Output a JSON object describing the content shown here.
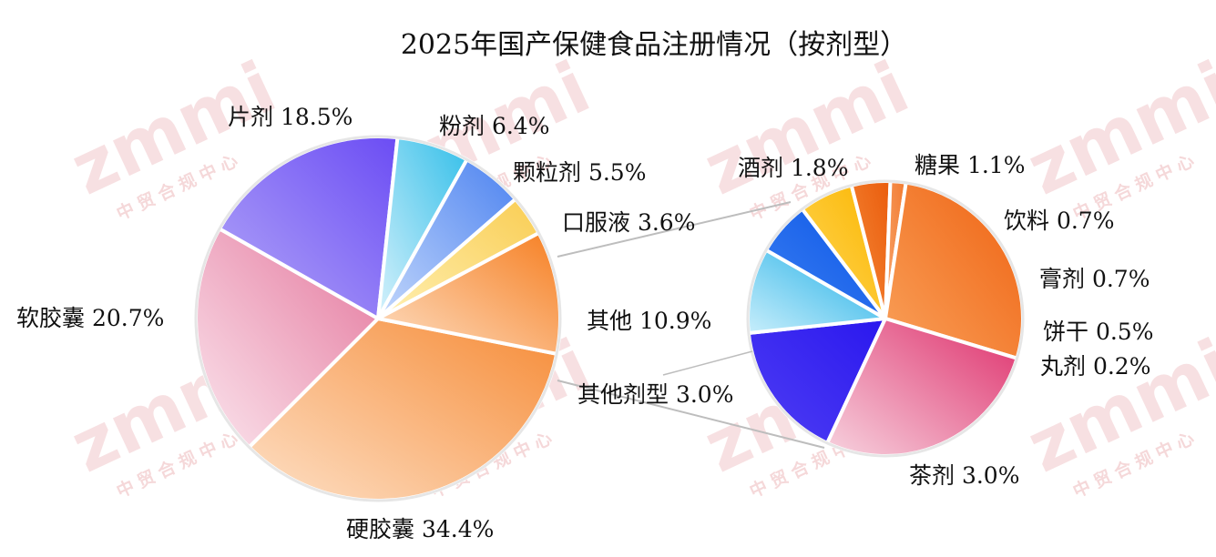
{
  "chart_data": [
    {
      "type": "pie",
      "title": "2025年国产保健食品注册情况（按剂型）",
      "slices": [
        {
          "name": "硬胶囊",
          "value": 34.4,
          "label": "硬胶囊 34.4%",
          "colors": [
            "#fde0c6",
            "#f68b36"
          ]
        },
        {
          "name": "软胶囊",
          "value": 20.7,
          "label": "软胶囊 20.7%",
          "colors": [
            "#fbe6ee",
            "#e4769c"
          ]
        },
        {
          "name": "片剂",
          "value": 18.5,
          "label": "片剂 18.5%",
          "colors": [
            "#b3a8f8",
            "#6b4cf4"
          ]
        },
        {
          "name": "粉剂",
          "value": 6.4,
          "label": "粉剂 6.4%",
          "colors": [
            "#d6f1fb",
            "#34bfe9"
          ]
        },
        {
          "name": "颗粒剂",
          "value": 5.5,
          "label": "颗粒剂 5.5%",
          "colors": [
            "#c3d7fb",
            "#4d83f0"
          ]
        },
        {
          "name": "口服液",
          "value": 3.6,
          "label": "口服液 3.6%",
          "colors": [
            "#fff0b3",
            "#f9cd53"
          ]
        },
        {
          "name": "其他",
          "value": 10.9,
          "label": "其他 10.9%",
          "colors": [
            "#fde0c6",
            "#f67f22"
          ]
        }
      ]
    },
    {
      "type": "pie",
      "title": "",
      "parent_slice": "其他剂型 3.0%",
      "slices": [
        {
          "name": "酒剂",
          "value": 1.8,
          "label": "酒剂 1.8%",
          "colors": [
            "#4f3ff4",
            "#2a17ee"
          ]
        },
        {
          "name": "糖果",
          "value": 1.1,
          "label": "糖果 1.1%",
          "colors": [
            "#c8eefb",
            "#1daee6"
          ]
        },
        {
          "name": "饮料",
          "value": 0.7,
          "label": "饮料 0.7%",
          "colors": [
            "#3b7ff2",
            "#0b55e6"
          ]
        },
        {
          "name": "膏剂",
          "value": 0.7,
          "label": "膏剂 0.7%",
          "colors": [
            "#ffd85a",
            "#fbb500"
          ]
        },
        {
          "name": "饼干",
          "value": 0.5,
          "label": "饼干 0.5%",
          "colors": [
            "#f58a3a",
            "#ea5c0c"
          ]
        },
        {
          "name": "丸剂",
          "value": 0.2,
          "label": "丸剂 0.2%",
          "colors": [
            "#f8a770",
            "#f27a2f"
          ]
        },
        {
          "name": "茶剂",
          "value": 3.0,
          "label": "茶剂 3.0%",
          "colors": [
            "#f9a15a",
            "#ef6212"
          ]
        },
        {
          "name": "其他剂型",
          "value": 3.0,
          "label": "",
          "colors": [
            "#f7d3df",
            "#de2f6b"
          ]
        }
      ]
    }
  ],
  "watermark": {
    "logo": "zmmi",
    "subtitle": "中贸合规中心"
  }
}
